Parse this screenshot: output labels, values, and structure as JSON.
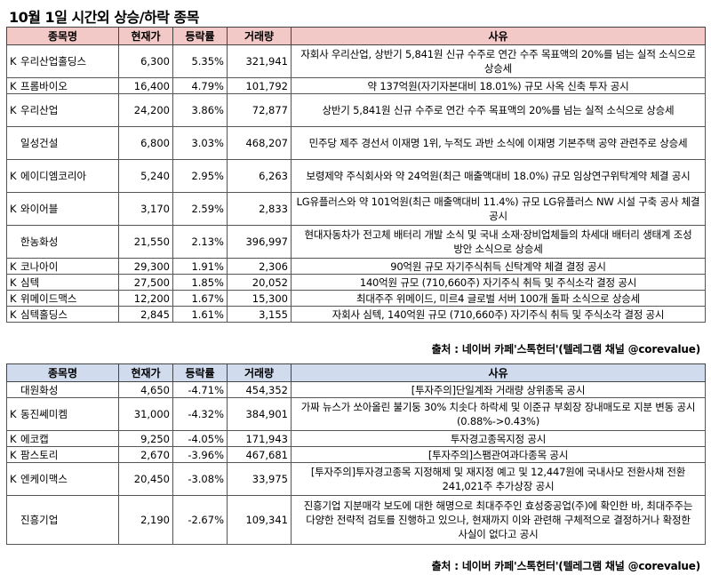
{
  "title": "10월 1일   시간외 상승/하락 종목",
  "headers": [
    "종목명",
    "현재가",
    "등락률",
    "거래량",
    "사유"
  ],
  "source_text": "출처 : 네이버 카페'스톡헌터'(텔레그램 채널 @corevalue)",
  "up_rows": [
    {
      "mark": "K",
      "name": "우리산업홀딩스",
      "price": "6,300",
      "change": "5.35%",
      "volume": "321,941",
      "reason": "자회사 우리산업, 상반기 5,841원 신규 수주로 연간 수주 목표액의 20%를 넘는 실적 소식으로 상승세"
    },
    {
      "mark": "K",
      "name": "프롬바이오",
      "price": "16,400",
      "change": "4.79%",
      "volume": "101,792",
      "reason": "약 137억원(자기자본대비 18.01%) 규모 사옥 신축 투자 공시"
    },
    {
      "mark": "K",
      "name": "우리산업",
      "price": "24,200",
      "change": "3.86%",
      "volume": "72,877",
      "reason": "상반기 5,841원 신규 수주로 연간 수주 목표액의 20%를 넘는 실적 소식으로 상승세"
    },
    {
      "mark": "",
      "name": "일성건설",
      "price": "6,800",
      "change": "3.03%",
      "volume": "468,207",
      "reason": "민주당 제주 경선서 이재명 1위, 누적도 과반 소식에 이재명 기본주택 공약 관련주로 상승세"
    },
    {
      "mark": "K",
      "name": "에이디엠코리아",
      "price": "5,240",
      "change": "2.95%",
      "volume": "6,263",
      "reason": "보령제약 주식회사와 약 24억원(최근 매출액대비 18.0%) 규모 임상연구위탁계약 체결 공시"
    },
    {
      "mark": "K",
      "name": "와이어블",
      "price": "3,170",
      "change": "2.59%",
      "volume": "2,833",
      "reason": "LG유플러스와 약 101억원(최근 매출액대비 11.4%) 규모 LG유플러스 NW 시설 구축 공사 체결 공시"
    },
    {
      "mark": "",
      "name": "한농화성",
      "price": "21,550",
      "change": "2.13%",
      "volume": "396,997",
      "reason": "현대자동차가 전고체 배터리 개발 소식 및 국내 소재·장비업체들의 차세대 배터리 생태계 조성 방안 소식으로 상승세"
    },
    {
      "mark": "K",
      "name": "코나아이",
      "price": "29,300",
      "change": "1.91%",
      "volume": "2,306",
      "reason": "90억원 규모 자기주식취득 신탁계약 체결 결정 공시"
    },
    {
      "mark": "K",
      "name": "심텍",
      "price": "27,500",
      "change": "1.85%",
      "volume": "20,052",
      "reason": "140억원 규모 (710,660주) 자기주식 취득 및 주식소각 결정 공시"
    },
    {
      "mark": "K",
      "name": "위메이드맥스",
      "price": "12,200",
      "change": "1.67%",
      "volume": "15,300",
      "reason": "최대주주 위메이드, 미르4 글로벌 서버 100개 돌파 소식으로 상승세"
    },
    {
      "mark": "K",
      "name": "심텍홀딩스",
      "price": "2,845",
      "change": "1.61%",
      "volume": "3,155",
      "reason": "자회사 심텍, 140억원 규모 (710,660주) 자기주식 취득 및 주식소각 결정 공시"
    }
  ],
  "down_rows": [
    {
      "mark": "",
      "name": "대원화성",
      "price": "4,650",
      "change": "-4.71%",
      "volume": "454,352",
      "reason": "[투자주의]단일계좌 거래량 상위종목 공시"
    },
    {
      "mark": "K",
      "name": "동진쎄미켐",
      "price": "31,000",
      "change": "-4.32%",
      "volume": "384,901",
      "reason": "가짜 뉴스가 쏘아올린 불기둥 30% 치솟다 하락세 및 이준규 부회장 장내매도로 지분 변동 공시(0.88%->0.43%)"
    },
    {
      "mark": "K",
      "name": "에코캡",
      "price": "9,250",
      "change": "-4.05%",
      "volume": "171,943",
      "reason": "투자경고종목지정 공시"
    },
    {
      "mark": "K",
      "name": "팜스토리",
      "price": "2,670",
      "change": "-3.96%",
      "volume": "467,681",
      "reason": "[투자주의]스팸관여과다종목 공시"
    },
    {
      "mark": "K",
      "name": "엔케이맥스",
      "price": "20,450",
      "change": "-3.08%",
      "volume": "33,975",
      "reason": "[투자주의]투자경고종목 지정해제 및 재지정 예고 및 12,447원에 국내사모 전환사채 전환 241,021주 추가상장 공시"
    },
    {
      "mark": "",
      "name": "진흥기업",
      "price": "2,190",
      "change": "-2.67%",
      "volume": "109,341",
      "reason": "진흥기업 지분매각 보도에 대한 해명으로 최대주주인 효성중공업(주)에 확인한 바, 최대주주는 다양한 전략적 검토를 진행하고 있으나, 현재까지 이와 관련해 구체적으로 결정하거나 확정한 사실이 없다고 공시"
    }
  ]
}
